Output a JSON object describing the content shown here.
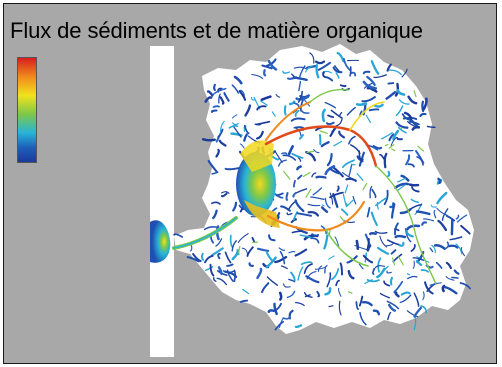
{
  "figure": {
    "title": "Flux de sédiments et de matière organique"
  },
  "legend": {
    "colors": [
      "#d81e1e",
      "#f08a1c",
      "#f2e21c",
      "#7cc84a",
      "#27b4d8",
      "#1f5fb8",
      "#1a3a9a"
    ]
  },
  "palette": {
    "background": "#a8a8a8",
    "land": "#ffffff",
    "river_low": "#1f4fb0",
    "river_mid": "#2aa6d6",
    "river_high_1": "#7cc84a",
    "river_high_2": "#f2d81c",
    "river_peak": "#e04a1a"
  }
}
